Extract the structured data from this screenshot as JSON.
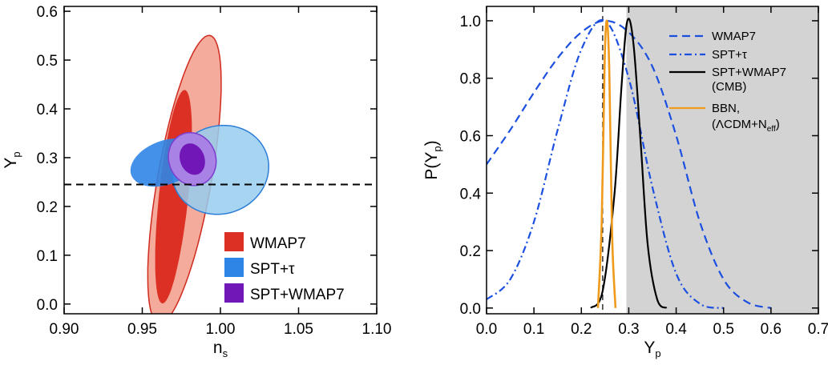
{
  "chart_data": [
    {
      "type": "contour",
      "xlabel": "n",
      "xlabel_sub": "s",
      "ylabel": "Y",
      "ylabel_sub": "p",
      "xlim": [
        0.9,
        1.1
      ],
      "ylim": [
        -0.02,
        0.61
      ],
      "xticks": [
        "0.90",
        "0.95",
        "1.00",
        "1.05",
        "1.10"
      ],
      "yticks": [
        "0.0",
        "0.1",
        "0.2",
        "0.3",
        "0.4",
        "0.5",
        "0.6"
      ],
      "reference_line_y": 0.245,
      "colors": {
        "wmap7_outer": "#f4ab9b",
        "wmap7_inner": "#dc3025",
        "wmap7_edge": "#d02a1f",
        "spt_outer": "#96cdef",
        "spt_inner": "#2f85e6",
        "spt_edge": "#2d7ed8",
        "combo_outer": "#a882e4",
        "combo_inner": "#7117b7",
        "combo_edge": "#7d3dcf"
      },
      "legend": [
        {
          "label": "WMAP7",
          "color": "#dc3025"
        },
        {
          "label": "SPT+τ",
          "color": "#2f85e6"
        },
        {
          "label": "SPT+WMAP7",
          "color": "#7117b7"
        }
      ],
      "contours": [
        {
          "series": "WMAP7",
          "level": "95%",
          "center": [
            0.977,
            0.255
          ],
          "axis_a": 0.3,
          "axis_b": 0.055,
          "angle_deg": 80
        },
        {
          "series": "WMAP7",
          "level": "68%",
          "center": [
            0.97,
            0.22
          ],
          "axis_a": 0.22,
          "axis_b": 0.03,
          "angle_deg": 84
        },
        {
          "series": "SPT+τ",
          "level": "95%",
          "center": [
            1.0,
            0.275
          ],
          "axis_a": 0.1,
          "axis_b": 0.09,
          "angle_deg": 20
        },
        {
          "series": "SPT+τ",
          "level": "68%",
          "center": [
            0.965,
            0.29
          ],
          "axis_a": 0.075,
          "axis_b": 0.045,
          "angle_deg": 20
        },
        {
          "series": "SPT+WMAP7",
          "level": "95%",
          "center": [
            0.982,
            0.297
          ],
          "axis_a": 0.048,
          "axis_b": 0.055,
          "angle_deg": 20
        },
        {
          "series": "SPT+WMAP7",
          "level": "68%",
          "center": [
            0.982,
            0.297
          ],
          "axis_a": 0.025,
          "axis_b": 0.033,
          "angle_deg": 20
        }
      ]
    },
    {
      "type": "line",
      "xlabel": "Y",
      "xlabel_sub": "p",
      "ylabel": "P(Y",
      "ylabel_sub": "p",
      "ylabel_tail": ")",
      "xlim": [
        0.0,
        0.7
      ],
      "ylim": [
        -0.02,
        1.05
      ],
      "xticks": [
        "0.0",
        "0.1",
        "0.2",
        "0.3",
        "0.4",
        "0.5",
        "0.6",
        "0.7"
      ],
      "yticks": [
        "0.0",
        "0.2",
        "0.4",
        "0.6",
        "0.8",
        "1.0"
      ],
      "shaded_region_x": [
        0.295,
        0.7
      ],
      "reference_line_x": 0.245,
      "series": [
        {
          "name": "WMAP7",
          "style": "dash",
          "color": "#1b4fe0",
          "x": [
            0.0,
            0.05,
            0.1,
            0.15,
            0.2,
            0.25,
            0.3,
            0.35,
            0.4,
            0.45,
            0.5,
            0.55,
            0.6
          ],
          "y": [
            0.5,
            0.62,
            0.75,
            0.87,
            0.96,
            1.0,
            0.96,
            0.84,
            0.6,
            0.3,
            0.1,
            0.02,
            0.0
          ]
        },
        {
          "name": "SPT+τ",
          "style": "dashdot",
          "color": "#1b4fe0",
          "x": [
            0.0,
            0.05,
            0.1,
            0.15,
            0.2,
            0.25,
            0.3,
            0.35,
            0.4,
            0.45,
            0.5
          ],
          "y": [
            0.03,
            0.1,
            0.3,
            0.62,
            0.9,
            1.0,
            0.8,
            0.42,
            0.12,
            0.015,
            0.0
          ]
        },
        {
          "name": "SPT+WMAP7 (CMB)",
          "style": "solid",
          "color": "#000000",
          "x": [
            0.22,
            0.245,
            0.27,
            0.285,
            0.297,
            0.31,
            0.325,
            0.34,
            0.36,
            0.38
          ],
          "y": [
            0.0,
            0.06,
            0.4,
            0.78,
            1.0,
            0.92,
            0.58,
            0.22,
            0.03,
            0.0
          ]
        },
        {
          "name": "BBN, (ΛCDM+N_eff)",
          "style": "solid",
          "color": "#f09a1c",
          "x": [
            0.235,
            0.243,
            0.249,
            0.254,
            0.259,
            0.265,
            0.272
          ],
          "y": [
            0.0,
            0.3,
            0.85,
            1.0,
            0.82,
            0.25,
            0.0
          ]
        }
      ],
      "legend": [
        {
          "lines": [
            "WMAP7"
          ],
          "style": "dash",
          "color": "#1b4fe0"
        },
        {
          "lines": [
            "SPT+τ"
          ],
          "style": "dashdot",
          "color": "#1b4fe0"
        },
        {
          "lines": [
            "SPT+WMAP7",
            "(CMB)"
          ],
          "style": "solid",
          "color": "#000000"
        },
        {
          "lines": [
            "BBN,",
            "(ΛCDM+N"
          ],
          "sub": "eff",
          "tail": ")",
          "style": "solid",
          "color": "#f09a1c"
        }
      ]
    }
  ]
}
